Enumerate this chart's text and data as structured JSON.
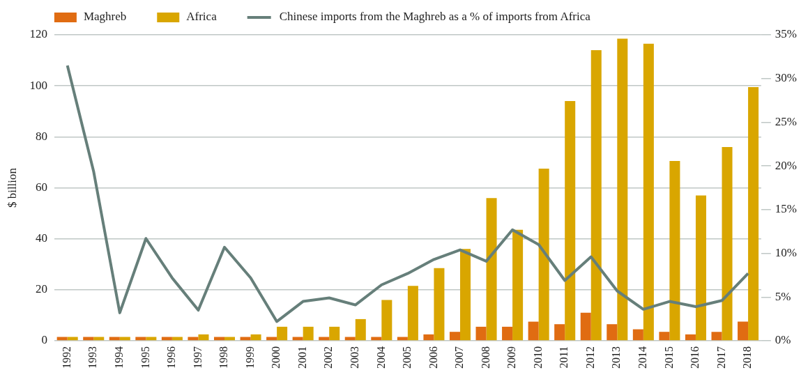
{
  "chart_data": {
    "type": "bar",
    "ylabel": "$ billion",
    "categories": [
      "1992",
      "1993",
      "1994",
      "1995",
      "1996",
      "1997",
      "1998",
      "1999",
      "2000",
      "2001",
      "2002",
      "2003",
      "2004",
      "2005",
      "2006",
      "2007",
      "2008",
      "2009",
      "2010",
      "2011",
      "2012",
      "2013",
      "2014",
      "2015",
      "2016",
      "2017",
      "2018"
    ],
    "series": [
      {
        "name": "Maghreb",
        "color": "#e06c12",
        "values": [
          1.5,
          1.5,
          1.5,
          1.5,
          1.5,
          1.5,
          1.5,
          1.5,
          1.5,
          1.5,
          1.5,
          1.5,
          1.5,
          1.5,
          2.5,
          3.5,
          5.5,
          5.5,
          7.5,
          6.5,
          11,
          6.5,
          4.5,
          3.5,
          2.5,
          3.5,
          7.5
        ]
      },
      {
        "name": "Africa",
        "color": "#d9a600",
        "values": [
          1.5,
          1.5,
          1.5,
          1.5,
          1.5,
          2.5,
          1.5,
          2.5,
          5.5,
          5.5,
          5.5,
          8.5,
          16,
          21.5,
          28.5,
          36,
          56,
          43.5,
          67.5,
          94,
          114,
          118.5,
          116.5,
          70.5,
          57,
          76,
          99.5
        ]
      },
      {
        "name": "Chinese imports from the Maghreb as a % of imports from Africa",
        "type": "line",
        "axis": "y2",
        "color": "#667f7a",
        "values": [
          31.5,
          19.4,
          3.2,
          11.7,
          7.2,
          3.5,
          10.7,
          7.2,
          2.2,
          4.5,
          4.9,
          4.1,
          6.4,
          7.7,
          9.3,
          10.4,
          9.1,
          12.7,
          11.0,
          6.9,
          9.6,
          5.7,
          3.6,
          4.5,
          3.9,
          4.6,
          7.7
        ]
      }
    ],
    "ylim": [
      0,
      120
    ],
    "yticks": [
      0,
      20,
      40,
      60,
      80,
      100,
      120
    ],
    "y2lim": [
      0,
      35
    ],
    "y2ticks": [
      {
        "value": 0,
        "label": "0%"
      },
      {
        "value": 5,
        "label": "5%"
      },
      {
        "value": 10,
        "label": "10%"
      },
      {
        "value": 15,
        "label": "15%"
      },
      {
        "value": 20,
        "label": "20%"
      },
      {
        "value": 25,
        "label": "25%"
      },
      {
        "value": 30,
        "label": "30%"
      },
      {
        "value": 35,
        "label": "35%"
      }
    ],
    "grid": "y",
    "legend": "top left",
    "marker": "none"
  }
}
